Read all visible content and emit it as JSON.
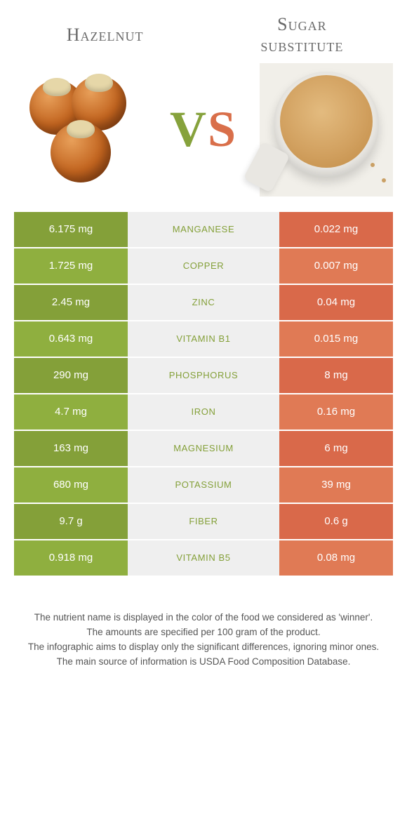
{
  "colors": {
    "green_dark": "#84a039",
    "green_light": "#8faf3f",
    "orange_dark": "#d9694a",
    "orange_light": "#e07a55",
    "mid_bg": "#efefef",
    "text_white": "#ffffff"
  },
  "header": {
    "left_title": "Hazelnut",
    "right_title": "Sugar\nsubstitute",
    "vs_v": "V",
    "vs_s": "S"
  },
  "rows": [
    {
      "left": "6.175 mg",
      "label": "MANGANESE",
      "right": "0.022 mg",
      "winner": "left"
    },
    {
      "left": "1.725 mg",
      "label": "COPPER",
      "right": "0.007 mg",
      "winner": "left"
    },
    {
      "left": "2.45 mg",
      "label": "ZINC",
      "right": "0.04 mg",
      "winner": "left"
    },
    {
      "left": "0.643 mg",
      "label": "VITAMIN B1",
      "right": "0.015 mg",
      "winner": "left"
    },
    {
      "left": "290 mg",
      "label": "PHOSPHORUS",
      "right": "8 mg",
      "winner": "left"
    },
    {
      "left": "4.7 mg",
      "label": "IRON",
      "right": "0.16 mg",
      "winner": "left"
    },
    {
      "left": "163 mg",
      "label": "MAGNESIUM",
      "right": "6 mg",
      "winner": "left"
    },
    {
      "left": "680 mg",
      "label": "POTASSIUM",
      "right": "39 mg",
      "winner": "left"
    },
    {
      "left": "9.7 g",
      "label": "FIBER",
      "right": "0.6 g",
      "winner": "left"
    },
    {
      "left": "0.918 mg",
      "label": "VITAMIN B5",
      "right": "0.08 mg",
      "winner": "left"
    }
  ],
  "footer": {
    "line1": "The nutrient name is displayed in the color of the food we considered as 'winner'.",
    "line2": "The amounts are specified per 100 gram of the product.",
    "line3": "The infographic aims to display only the significant differences, ignoring minor ones.",
    "line4": "The main source of information is USDA Food Composition Database."
  }
}
